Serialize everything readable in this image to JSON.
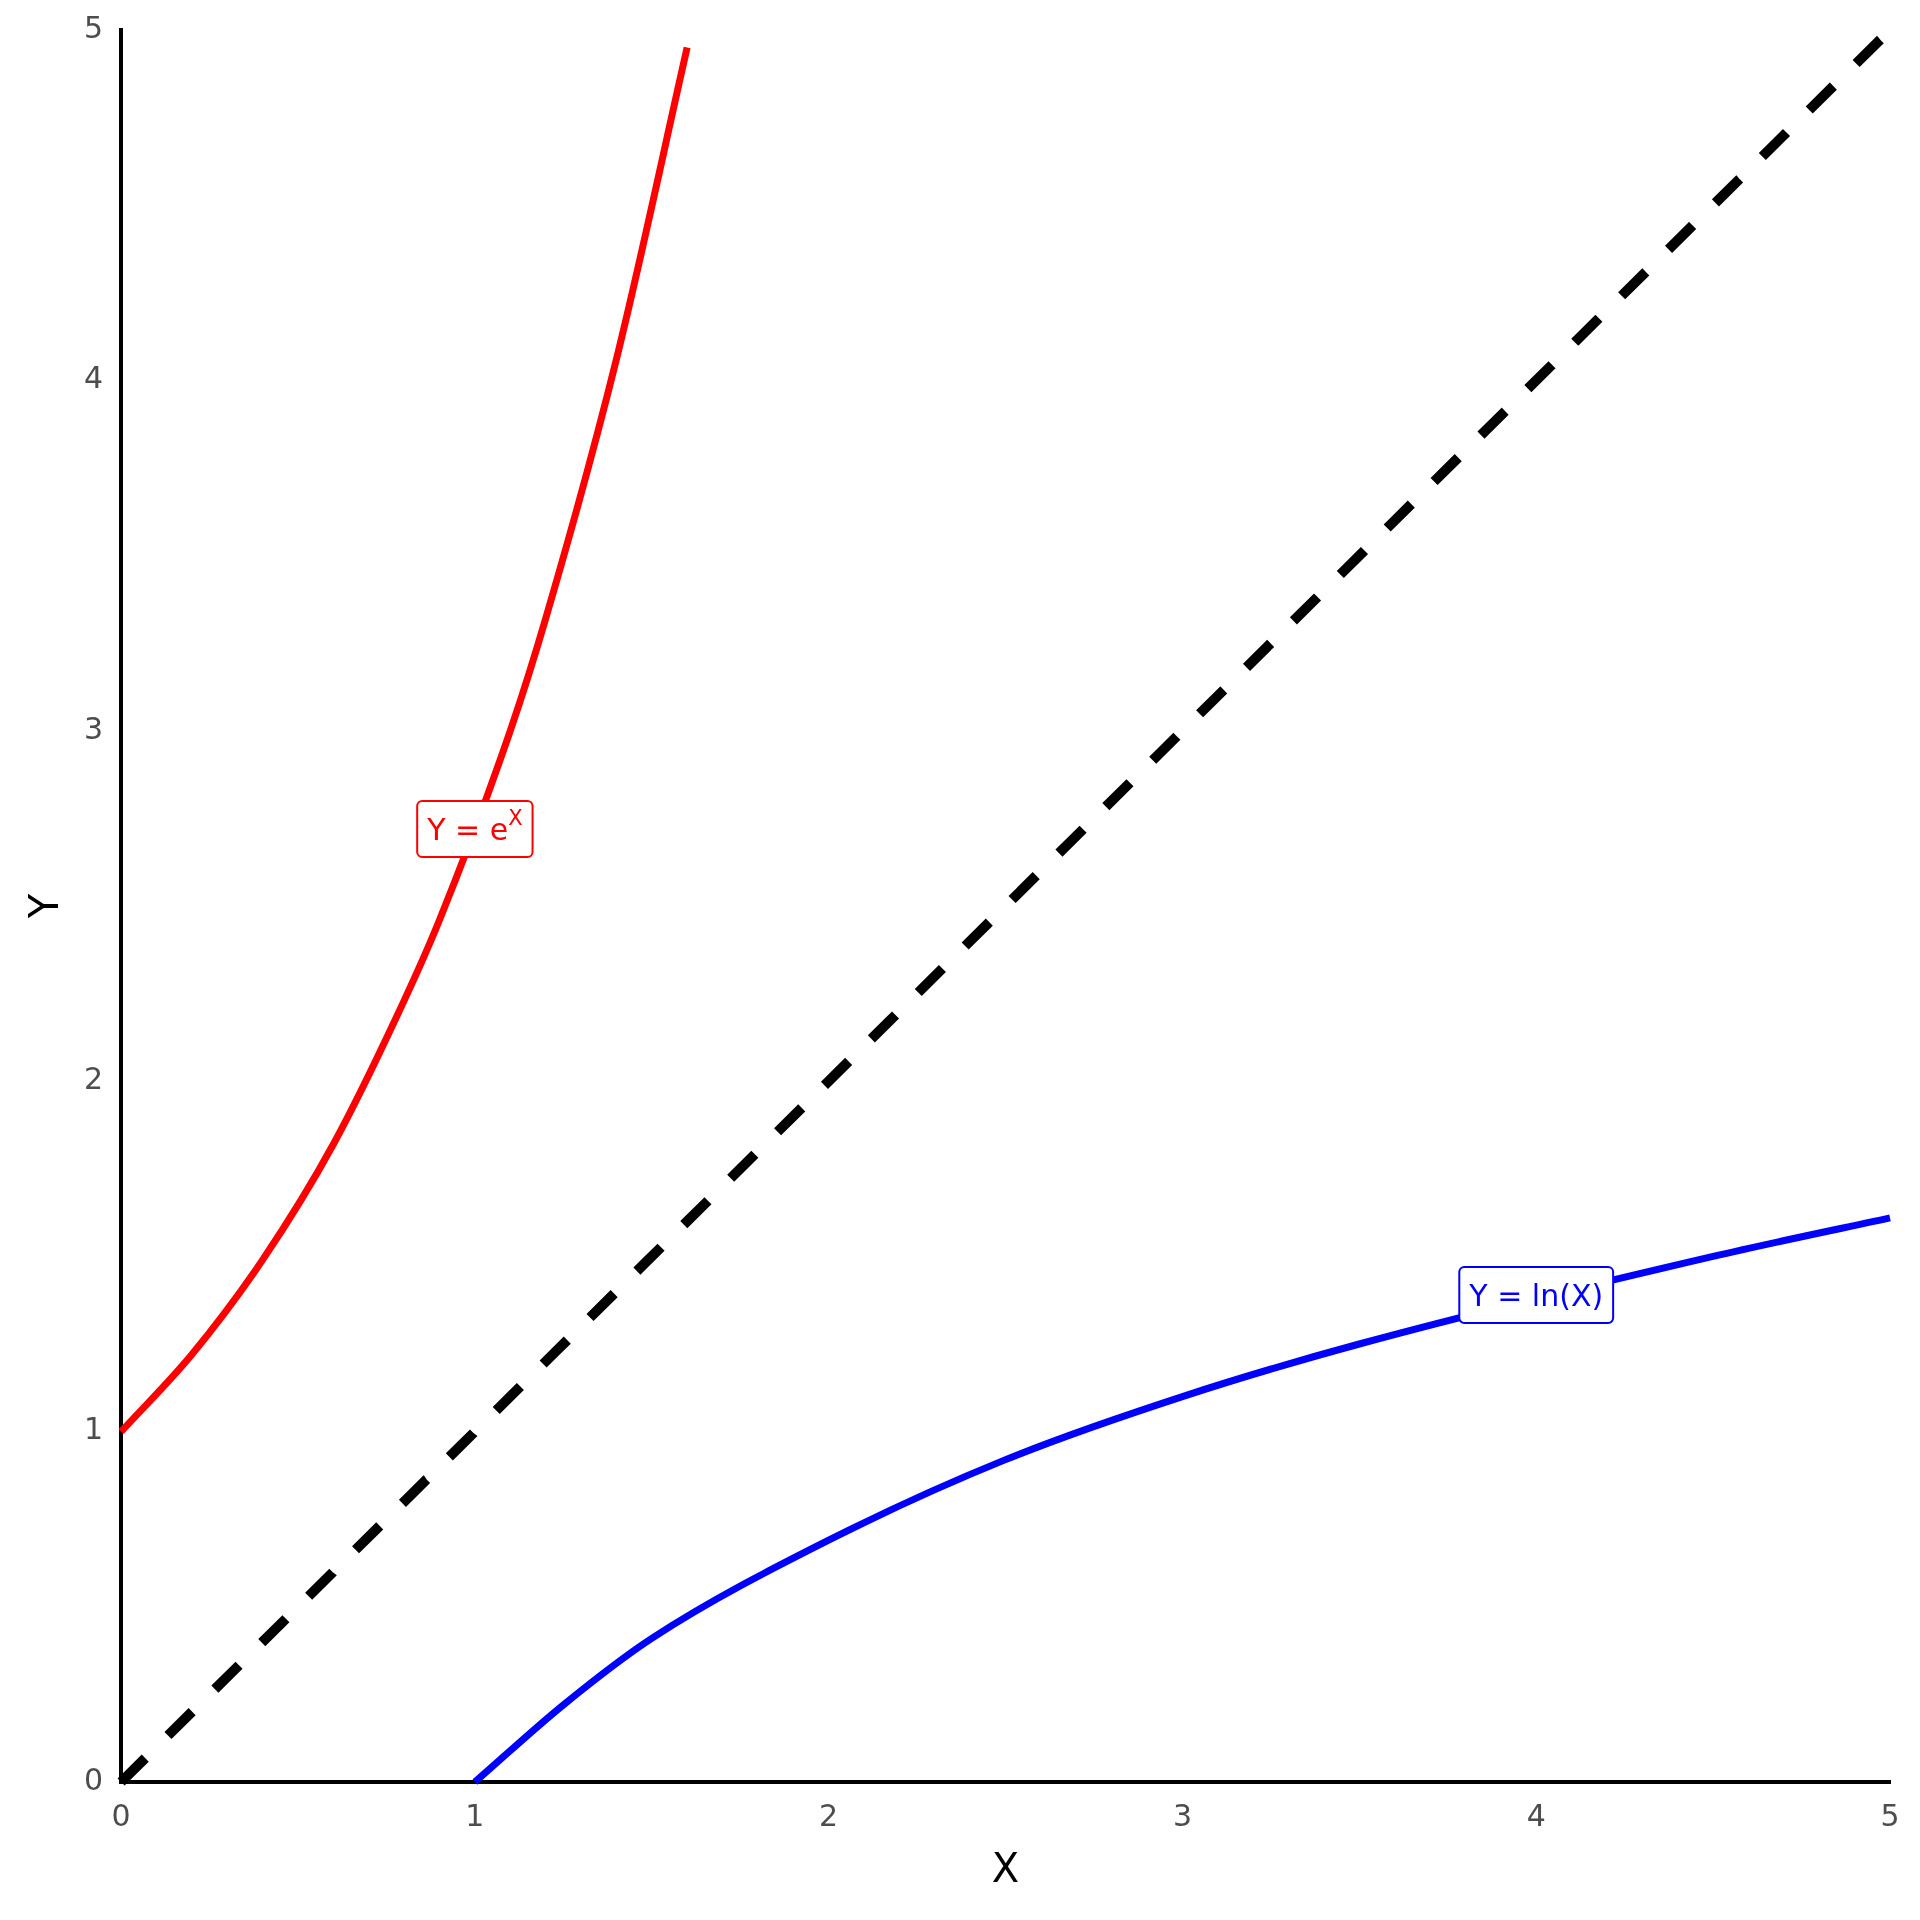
{
  "chart_data": {
    "type": "line",
    "xlabel": "X",
    "ylabel": "Y",
    "xlim": [
      0,
      5
    ],
    "ylim": [
      0,
      5
    ],
    "xticks": [
      0,
      1,
      2,
      3,
      4,
      5
    ],
    "yticks": [
      0,
      1,
      2,
      3,
      4,
      5
    ],
    "grid": false,
    "legend": false,
    "marker": "none",
    "series": [
      {
        "color": "#ff0000",
        "line_style": "solid",
        "x": [
          0,
          0.2,
          0.4,
          0.6,
          0.8,
          0.9,
          1.1,
          1.2,
          1.4,
          1.6
        ],
        "values": [
          1,
          1.22,
          1.49,
          1.82,
          2.23,
          2.46,
          3.0,
          3.32,
          4.06,
          4.95
        ]
      },
      {
        "color": "#0000ff",
        "line_style": "solid",
        "x": [
          1,
          1.25,
          1.5,
          2,
          2.5,
          3,
          3.5,
          4.5,
          5
        ],
        "values": [
          0,
          0.22,
          0.41,
          0.69,
          0.92,
          1.1,
          1.25,
          1.5,
          1.61
        ]
      },
      {
        "color": "#000000",
        "line_style": "dashed",
        "x": [
          0,
          5
        ],
        "values": [
          0,
          5
        ]
      }
    ],
    "annotations": [
      {
        "text": "Y = e$^{X}$",
        "x": 1,
        "y": 2.72
      },
      {
        "text": "Y = ln(X)",
        "x": 4,
        "y": 1.39
      }
    ]
  }
}
